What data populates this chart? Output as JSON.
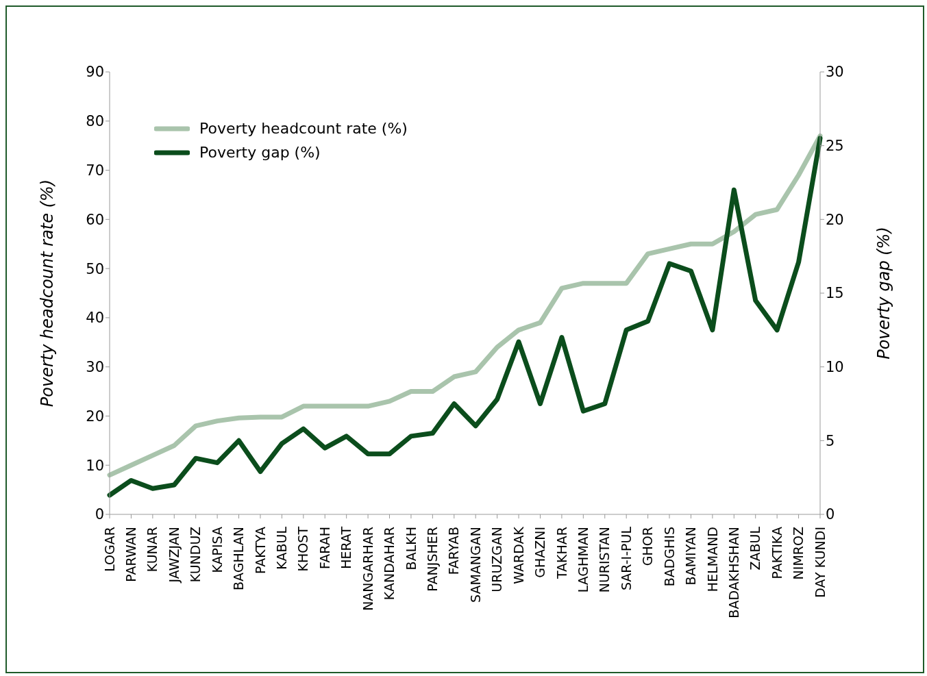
{
  "chart_data": {
    "type": "line",
    "categories": [
      "LOGAR",
      "PARWAN",
      "KUNAR",
      "JAWZJAN",
      "KUNDUZ",
      "KAPISA",
      "BAGHLAN",
      "PAKTYA",
      "KABUL",
      "KHOST",
      "FARAH",
      "HERAT",
      "NANGARHAR",
      "KANDAHAR",
      "BALKH",
      "PANJSHER",
      "FARYAB",
      "SAMANGAN",
      "URUZGAN",
      "WARDAK",
      "GHAZNI",
      "TAKHAR",
      "LAGHMAN",
      "NURISTAN",
      "SAR-I-PUL",
      "GHOR",
      "BADGHIS",
      "BAMIYAN",
      "HELMAND",
      "BADAKHSHAN",
      "ZABUL",
      "PAKTIKA",
      "NIMROZ",
      "DAY KUNDI"
    ],
    "series": [
      {
        "name": "Poverty headcount rate (%)",
        "color": "#a9c4ac",
        "values": [
          8,
          10,
          12,
          14,
          18,
          19,
          19.6,
          19.8,
          19.8,
          22,
          22,
          22,
          22,
          23,
          25,
          25,
          28,
          29,
          34,
          37.5,
          39,
          46,
          47,
          47,
          47,
          53,
          54,
          55,
          55,
          57.5,
          61,
          62,
          69,
          77
        ]
      },
      {
        "name": "Poverty gap (%)",
        "color": "#0b4d1c",
        "axis": "y2",
        "values": [
          1.3,
          2.3,
          1.75,
          2,
          3.8,
          3.5,
          5,
          2.9,
          4.8,
          5.8,
          4.5,
          5.3,
          4.1,
          4.1,
          5.3,
          5.5,
          7.5,
          6,
          7.8,
          11.7,
          7.5,
          12,
          7,
          7.5,
          12.5,
          13.1,
          17,
          16.5,
          12.5,
          22,
          14.5,
          12.5,
          17.1,
          25.5
        ]
      }
    ],
    "ylabel": "Poverty headcount rate (%)",
    "y2label": "Poverty gap (%)",
    "ylim": [
      0,
      90
    ],
    "yticks": [
      0,
      10,
      20,
      30,
      40,
      50,
      60,
      70,
      80,
      90
    ],
    "y2lim": [
      0,
      30
    ],
    "y2ticks": [
      0,
      5,
      10,
      15,
      20,
      25,
      30
    ],
    "legend": "top left",
    "grid": false,
    "marker": "none",
    "line_style": "solid"
  }
}
